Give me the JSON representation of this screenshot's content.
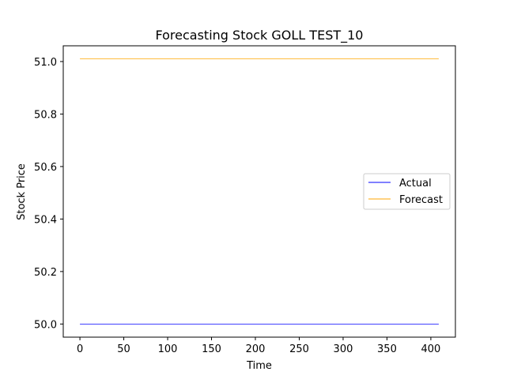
{
  "chart_data": {
    "type": "line",
    "title": "Forecasting Stock GOLL TEST_10",
    "xlabel": "Time",
    "ylabel": "Stock Price",
    "xlim": [
      -19,
      428
    ],
    "ylim": [
      49.95,
      51.06
    ],
    "xticks": [
      0,
      50,
      100,
      150,
      200,
      250,
      300,
      350,
      400
    ],
    "yticks": [
      50.0,
      50.2,
      50.4,
      50.6,
      50.8,
      51.0
    ],
    "ytick_labels": [
      "50.0",
      "50.2",
      "50.4",
      "50.6",
      "50.8",
      "51.0"
    ],
    "grid": false,
    "legend_position": "center-right",
    "series": [
      {
        "name": "Actual",
        "color": "#0000ff",
        "x": [
          0,
          409
        ],
        "y": [
          50.0,
          50.0
        ]
      },
      {
        "name": "Forecast",
        "color": "#ffa500",
        "x": [
          0,
          409
        ],
        "y": [
          51.01,
          51.01
        ]
      }
    ]
  }
}
